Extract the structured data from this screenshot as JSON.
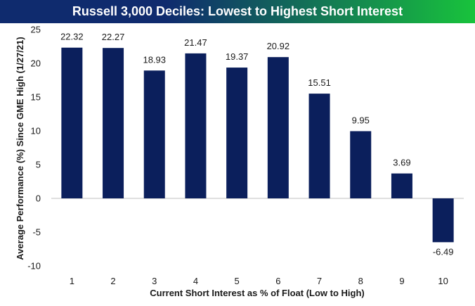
{
  "title": "Russell 3,000 Deciles: Lowest to Highest Short Interest",
  "colors": {
    "bar": "#0b1f5c",
    "title_gradient_start": "#0f2b6e",
    "title_gradient_end": "#18c33c",
    "title_text": "#ffffff"
  },
  "chart_data": {
    "type": "bar",
    "title": "Russell 3,000 Deciles: Lowest to Highest Short Interest",
    "xlabel": "Current Short Interest as % of Float (Low to High)",
    "ylabel": "Average Performance (%) Since GME High (1/27/21)",
    "categories": [
      "1",
      "2",
      "3",
      "4",
      "5",
      "6",
      "7",
      "8",
      "9",
      "10"
    ],
    "values": [
      22.32,
      22.27,
      18.93,
      21.47,
      19.37,
      20.92,
      15.51,
      9.95,
      3.69,
      -6.49
    ],
    "data_labels": [
      "22.32",
      "22.27",
      "18.93",
      "21.47",
      "19.37",
      "20.92",
      "15.51",
      "9.95",
      "3.69",
      "-6.49"
    ],
    "ylim": [
      -10,
      25
    ],
    "yticks": [
      -10,
      -5,
      0,
      5,
      10,
      15,
      20,
      25
    ],
    "grid": false,
    "legend": "none"
  }
}
